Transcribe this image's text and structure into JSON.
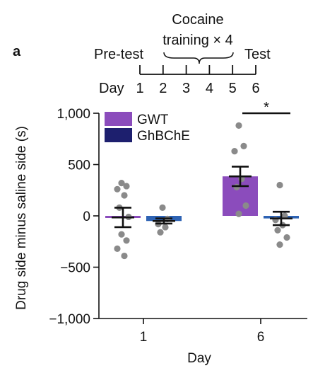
{
  "panel_label": "a",
  "timeline": {
    "training_label_line1": "Cocaine",
    "training_label_line2": "training × 4",
    "pretest_label": "Pre-test",
    "test_label": "Test",
    "day_prefix": "Day",
    "days": [
      "1",
      "2",
      "3",
      "4",
      "5",
      "6"
    ]
  },
  "significance": "*",
  "colors": {
    "GWT": "#8b4cbc",
    "GhBChE": "#2e63b4",
    "GhBChE_legend": "#1d1f6e",
    "points": "#8a8a8a",
    "error": "#111111"
  },
  "chart_data": {
    "type": "bar",
    "categories": [
      "1",
      "6"
    ],
    "xlabel": "Day",
    "ylabel": "Drug side minus saline side (s)",
    "ylim": [
      -1000,
      1000
    ],
    "yticks": [
      -1000,
      -500,
      0,
      500,
      1000
    ],
    "ytick_labels": [
      "−1,000",
      "−500",
      "0",
      "500",
      "1,000"
    ],
    "legend_position": "top-left",
    "series": [
      {
        "name": "GWT",
        "values": [
          -15,
          385
        ],
        "sem": [
          95,
          95
        ],
        "points": [
          [
            320,
            290,
            260,
            200,
            80,
            -10,
            -180,
            -240,
            -320,
            -390
          ],
          [
            880,
            680,
            630,
            360,
            280,
            100,
            20
          ]
        ]
      },
      {
        "name": "GhBChE",
        "values": [
          -50,
          -25
        ],
        "sem": [
          25,
          65
        ],
        "points": [
          [
            80,
            -30,
            -80,
            -110,
            -160
          ],
          [
            300,
            0,
            -40,
            -90,
            -140,
            -210,
            -280
          ]
        ]
      }
    ]
  }
}
